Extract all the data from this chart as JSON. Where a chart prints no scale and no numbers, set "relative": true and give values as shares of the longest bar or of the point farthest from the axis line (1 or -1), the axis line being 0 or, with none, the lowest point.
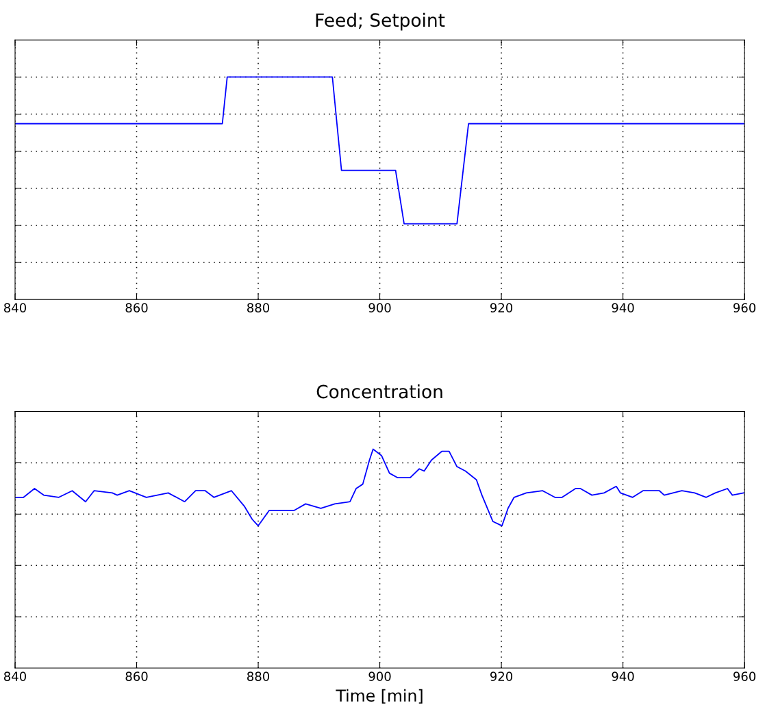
{
  "chart_data": [
    {
      "type": "line",
      "title": "Feed; Setpoint",
      "relative": true,
      "grid": true,
      "tick_labels": "x",
      "line_style": "solid",
      "marker": "none",
      "x": [
        840.0,
        874.1,
        874.9,
        892.2,
        893.7,
        902.6,
        904.0,
        912.7,
        914.6,
        960.0
      ],
      "xlim": [
        840,
        960
      ],
      "xticks": [
        840,
        860,
        880,
        900,
        920,
        940,
        960
      ],
      "series": [
        {
          "color": "#0000ff",
          "values": [
            0.79,
            0.79,
            1.0,
            1.0,
            0.58,
            0.58,
            0.34,
            0.34,
            0.79,
            0.79
          ]
        }
      ]
    },
    {
      "type": "line",
      "title": "Concentration",
      "xlabel": "Time [min]",
      "relative": true,
      "grid": true,
      "tick_labels": "x",
      "line_style": "solid",
      "marker": "none",
      "x": [
        840.0,
        841.4,
        843.2,
        844.7,
        847.2,
        849.4,
        851.6,
        853.0,
        856.0,
        856.8,
        858.8,
        861.6,
        865.2,
        867.9,
        869.7,
        871.3,
        872.7,
        875.6,
        877.7,
        879.0,
        880.0,
        881.8,
        883.4,
        885.9,
        887.8,
        890.3,
        892.6,
        895.1,
        896.1,
        897.2,
        898.3,
        898.9,
        900.3,
        901.6,
        902.9,
        905.0,
        906.5,
        907.3,
        908.5,
        910.2,
        911.4,
        912.7,
        914.1,
        915.9,
        916.8,
        918.6,
        920.1,
        921.1,
        922.1,
        924.1,
        926.8,
        928.8,
        930.0,
        932.2,
        933.0,
        934.9,
        936.9,
        938.9,
        939.6,
        941.6,
        943.3,
        946.0,
        946.8,
        949.7,
        951.8,
        953.7,
        955.2,
        957.2,
        958.0,
        959.9
      ],
      "xlim": [
        840,
        960
      ],
      "xticks": [
        840,
        860,
        880,
        900,
        920,
        940,
        960
      ],
      "series": [
        {
          "color": "#0000ff",
          "values": [
            0.78,
            0.78,
            0.82,
            0.79,
            0.78,
            0.81,
            0.76,
            0.81,
            0.8,
            0.79,
            0.81,
            0.78,
            0.8,
            0.76,
            0.81,
            0.81,
            0.78,
            0.81,
            0.74,
            0.68,
            0.65,
            0.72,
            0.72,
            0.72,
            0.75,
            0.73,
            0.75,
            0.76,
            0.82,
            0.84,
            0.95,
            1.0,
            0.97,
            0.89,
            0.87,
            0.87,
            0.91,
            0.9,
            0.95,
            0.99,
            0.99,
            0.92,
            0.9,
            0.86,
            0.79,
            0.67,
            0.65,
            0.73,
            0.78,
            0.8,
            0.81,
            0.78,
            0.78,
            0.82,
            0.82,
            0.79,
            0.8,
            0.83,
            0.8,
            0.78,
            0.81,
            0.81,
            0.79,
            0.81,
            0.8,
            0.78,
            0.8,
            0.82,
            0.79,
            0.8
          ]
        }
      ]
    }
  ]
}
